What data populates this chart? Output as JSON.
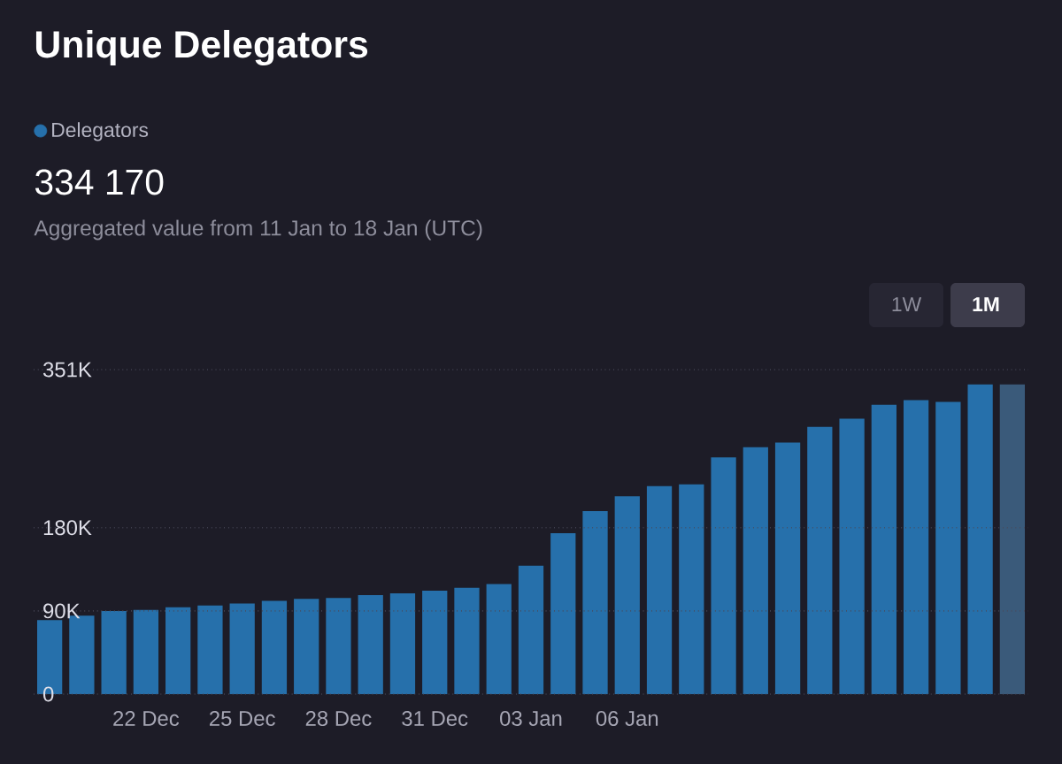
{
  "chart_data": {
    "type": "bar",
    "title": "Unique Delegators",
    "categories": [
      null,
      null,
      null,
      "22 Dec",
      null,
      null,
      "25 Dec",
      null,
      null,
      "28 Dec",
      null,
      null,
      "31 Dec",
      null,
      null,
      "03 Jan",
      null,
      null,
      "06 Jan",
      null,
      null,
      null,
      null,
      null,
      null,
      null,
      null,
      null,
      null,
      null,
      null
    ],
    "series": [
      {
        "name": "Delegators",
        "color": "#2670ab",
        "colors": [
          "#2670ab",
          "#2670ab",
          "#2670ab",
          "#2670ab",
          "#2670ab",
          "#2670ab",
          "#2670ab",
          "#2670ab",
          "#2670ab",
          "#2670ab",
          "#2670ab",
          "#2670ab",
          "#2670ab",
          "#2670ab",
          "#2670ab",
          "#2670ab",
          "#2670ab",
          "#2670ab",
          "#2670ab",
          "#2670ab",
          "#2670ab",
          "#2670ab",
          "#2670ab",
          "#2670ab",
          "#2670ab",
          "#2670ab",
          "#2670ab",
          "#2670ab",
          "#2670ab",
          "#2670ab",
          "#3a5a7a"
        ],
        "values": [
          80000,
          85000,
          90000,
          91000,
          94000,
          96000,
          98000,
          101000,
          103000,
          104000,
          107000,
          109000,
          112000,
          115000,
          119000,
          139000,
          174000,
          198000,
          214000,
          225000,
          227000,
          256000,
          267000,
          272000,
          289000,
          298000,
          313000,
          318000,
          316000,
          335000,
          335000
        ]
      }
    ],
    "ylim": [
      0,
      351000
    ],
    "yticks": [
      0,
      {
        "value": 90000,
        "label": "90K"
      },
      {
        "value": 180000,
        "label": "180K"
      },
      {
        "value": 351000,
        "label": "351K"
      }
    ],
    "grid": "y",
    "legend": "top left",
    "annotations": [
      "334 170",
      "Aggregated value from 11 Jan to 18 Jan (UTC)",
      "1W",
      "1M"
    ]
  }
}
